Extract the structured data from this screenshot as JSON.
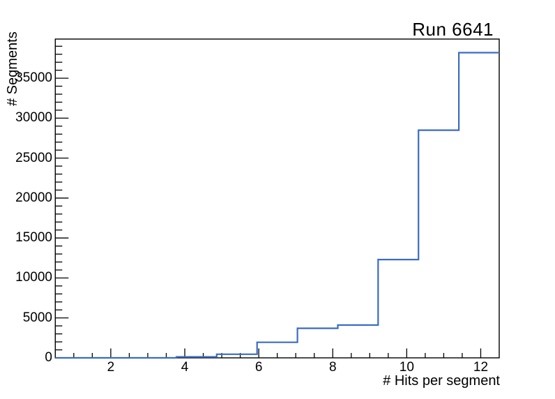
{
  "page": {
    "background": "#ffffff"
  },
  "chart_data": {
    "type": "step-histogram",
    "title": "Run 6641",
    "xlabel": "# Hits per segment",
    "ylabel": "# Segments",
    "xlim": [
      0.5,
      12.5
    ],
    "ylim": [
      0,
      39900
    ],
    "bins": 11,
    "bin_edges": [
      0.5,
      1.591,
      2.682,
      3.773,
      4.864,
      5.955,
      7.045,
      8.136,
      9.227,
      10.318,
      11.409,
      12.5
    ],
    "counts": [
      0,
      0,
      0,
      120,
      450,
      1950,
      3700,
      4100,
      12300,
      28500,
      38200
    ],
    "x_major_ticks": [
      2,
      4,
      6,
      8,
      10,
      12
    ],
    "x_minor_step": 0.5,
    "y_major_ticks": [
      0,
      5000,
      10000,
      15000,
      20000,
      25000,
      30000,
      35000
    ],
    "y_minor_step": 1000,
    "line_color": "#3a6cc6",
    "frame_color": "#000000",
    "grid": false,
    "legend": false
  }
}
